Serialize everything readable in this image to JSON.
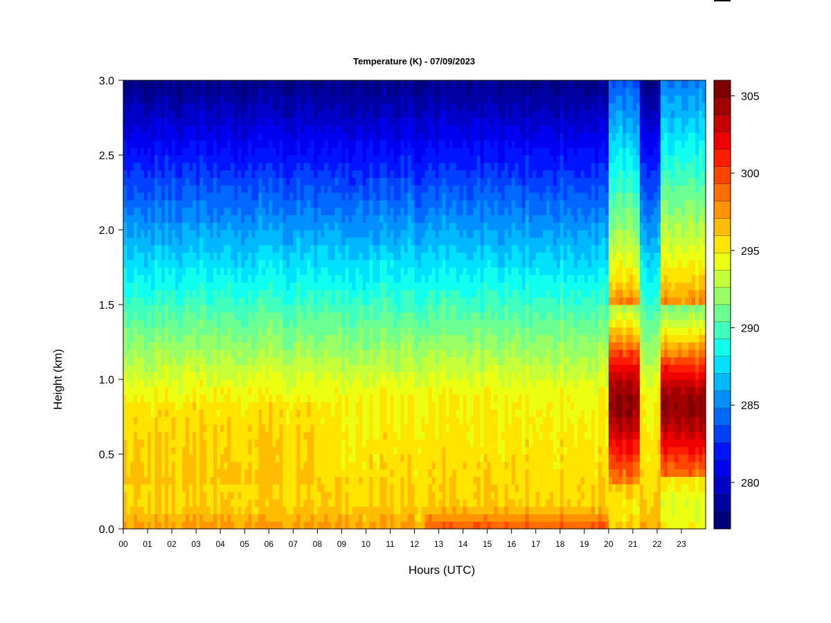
{
  "chart_data": {
    "type": "heatmap",
    "title": "Temperature (K) - 07/09/2023",
    "xlabel": "Hours (UTC)",
    "ylabel": "Height (km)",
    "x_ticks": [
      "00",
      "01",
      "02",
      "03",
      "04",
      "05",
      "06",
      "07",
      "08",
      "09",
      "10",
      "11",
      "12",
      "13",
      "14",
      "15",
      "16",
      "17",
      "18",
      "19",
      "20",
      "21",
      "22",
      "23"
    ],
    "xlim": [
      0,
      24
    ],
    "y_ticks": [
      0.0,
      0.5,
      1.0,
      1.5,
      2.0,
      2.5,
      3.0
    ],
    "y_tick_labels": [
      "0.0",
      "0.5",
      "1.0",
      "1.5",
      "2.0",
      "2.5",
      "3.0"
    ],
    "ylim": [
      0.0,
      3.0
    ],
    "colorbar": {
      "label": "",
      "range": [
        277,
        306
      ],
      "levels": 29,
      "ticks": [
        280,
        285,
        290,
        295,
        300,
        305
      ],
      "tick_labels": [
        "280",
        "285",
        "290",
        "295",
        "300",
        "305"
      ],
      "colors": [
        "#00007F",
        "#0000A0",
        "#0000C8",
        "#0000F0",
        "#0014FF",
        "#0040FF",
        "#0068FF",
        "#0090FF",
        "#00B8FF",
        "#00E0FF",
        "#10FFEE",
        "#40FFBE",
        "#6CFF92",
        "#98FF66",
        "#C4FF3A",
        "#ECFF12",
        "#FFE400",
        "#FFBC00",
        "#FF9400",
        "#FF6C00",
        "#FF4400",
        "#FF1C00",
        "#F00000",
        "#C80000",
        "#A00000",
        "#7F0000"
      ]
    },
    "profiles": [
      {
        "period": "00-08",
        "surface": 298,
        "h0_5": 297,
        "h1_0": 295,
        "h1_5": 292,
        "h2_0": 287,
        "h2_5": 283,
        "h3_0": 279
      },
      {
        "period": "08-13",
        "surface": 297,
        "h0_5": 296,
        "h1_0": 295,
        "h1_5": 291,
        "h2_0": 287,
        "h2_5": 283,
        "h3_0": 279
      },
      {
        "period": "13-20",
        "surface": 299,
        "h0_5": 295,
        "h1_0": 294,
        "h1_5": 291,
        "h2_0": 287,
        "h2_5": 282,
        "h3_0": 279
      },
      {
        "period": "20-21.3",
        "surface": 295,
        "h0_5": 301,
        "h1_0": 304,
        "h1_5": 296,
        "h2_0": 289,
        "h2_5": 286,
        "h3_0": 285
      },
      {
        "period": "22-24",
        "surface": 293,
        "h0_5": 303,
        "h1_0": 304,
        "h1_5": 297,
        "h2_0": 290,
        "h2_5": 287,
        "h3_0": 286
      }
    ]
  }
}
